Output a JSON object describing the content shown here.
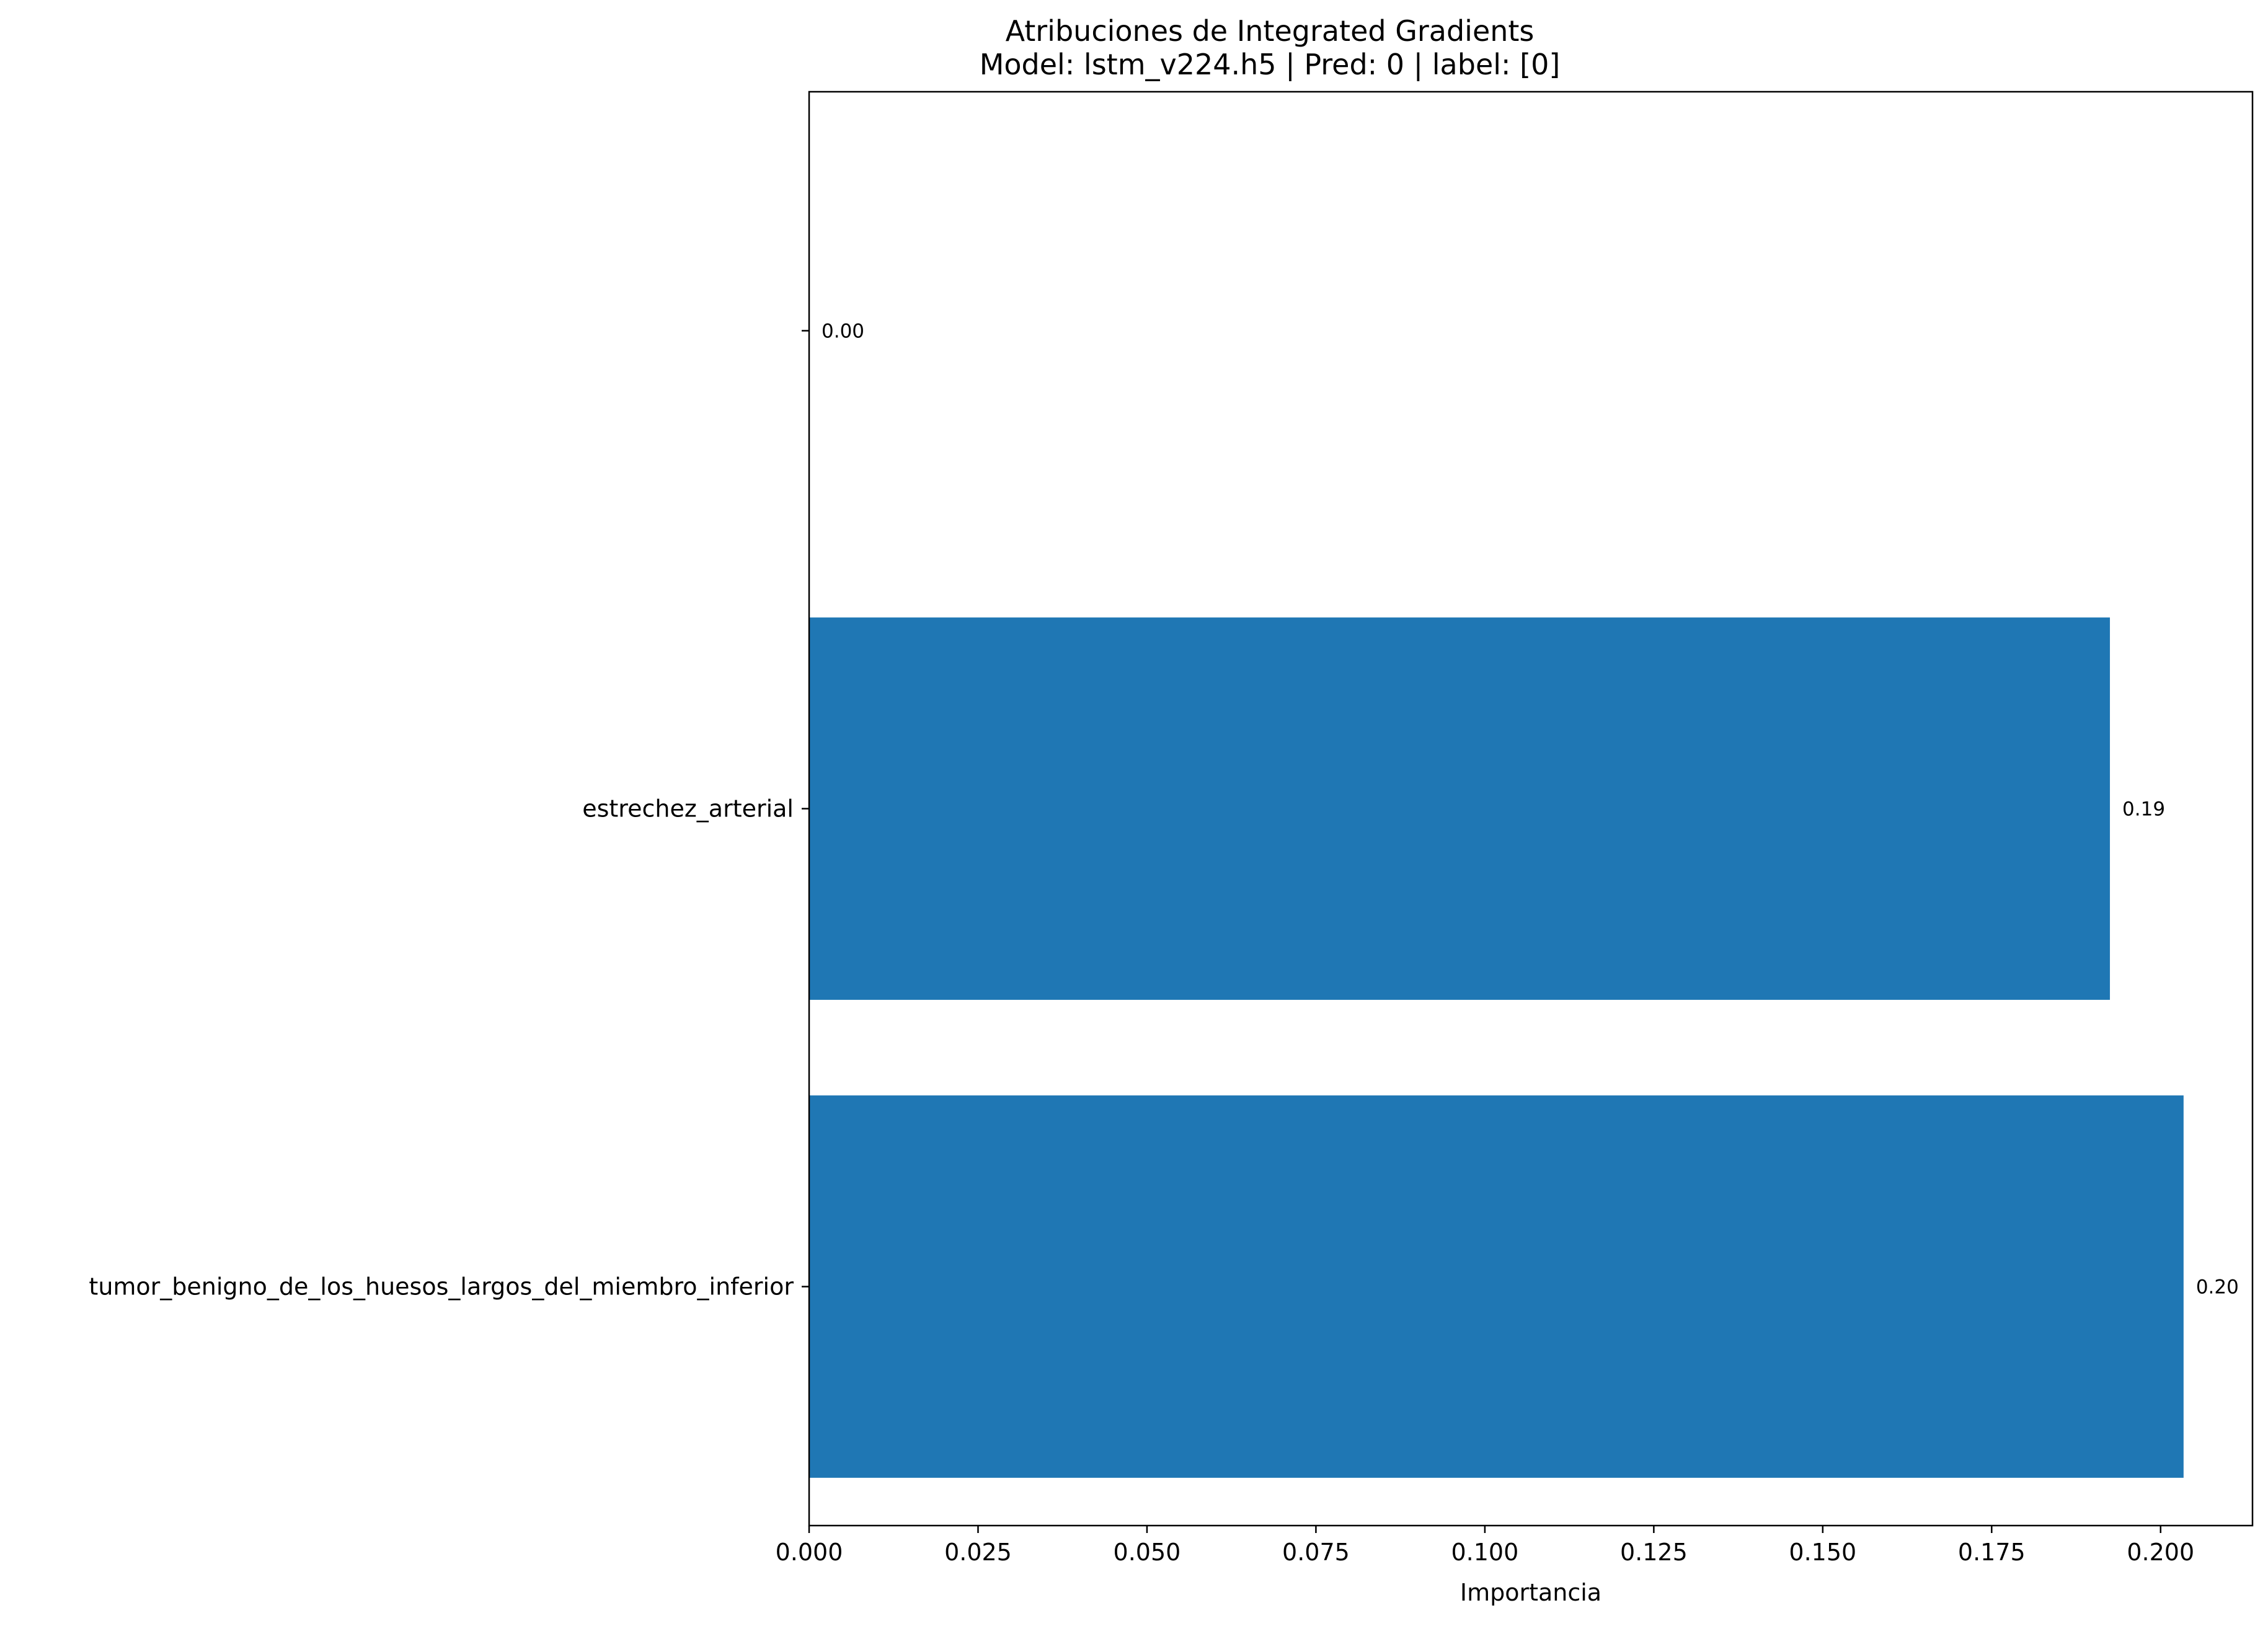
{
  "chart_data": {
    "type": "bar",
    "orientation": "horizontal",
    "title": "Atribuciones de Integrated Gradients",
    "subtitle": "Model: lstm_v224.h5 | Pred: 0 | label: [0]",
    "xlabel": "Importancia",
    "ylabel": "",
    "categories": [
      "tumor_benigno_de_los_huesos_largos_del_miembro_inferior",
      "estrechez_arterial",
      ""
    ],
    "values": [
      0.2034,
      0.1925,
      0.0
    ],
    "data_labels": [
      "0.20",
      "0.19",
      "0.00"
    ],
    "xlim": [
      0.0,
      0.2136
    ],
    "xticks": [
      0.0,
      0.025,
      0.05,
      0.075,
      0.1,
      0.125,
      0.15,
      0.175,
      0.2
    ],
    "xtick_labels": [
      "0.000",
      "0.025",
      "0.050",
      "0.075",
      "0.100",
      "0.125",
      "0.150",
      "0.175",
      "0.200"
    ],
    "bar_color": "#1f77b4",
    "grid": false,
    "legend": "none"
  }
}
